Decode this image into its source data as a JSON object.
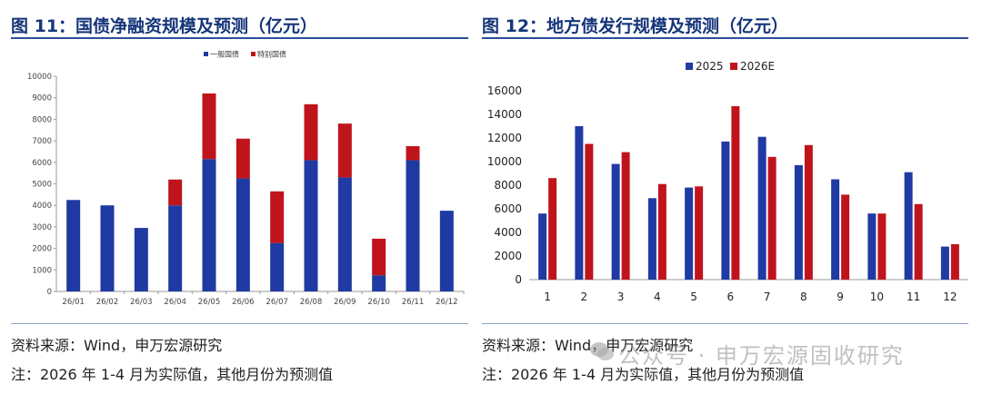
{
  "colors": {
    "blue": "#1f3aa3",
    "red": "#c0141c",
    "title": "#15357a"
  },
  "left": {
    "title": "图 11：国债净融资规模及预测（亿元）",
    "source": "资料来源：Wind，申万宏源研究",
    "note": "注：2026 年 1-4 月为实际值，其他月份为预测值"
  },
  "right": {
    "title": "图 12：地方债发行规模及预测（亿元）",
    "source": "资料来源：Wind，申万宏源研究",
    "note": "注：2026 年 1-4 月为实际值，其他月份为预测值"
  },
  "watermark": "公众号 · 申万宏源固收研究",
  "chart_data": [
    {
      "id": "left",
      "type": "bar",
      "stacked": true,
      "title": "国债净融资规模及预测（亿元）",
      "categories": [
        "26/01",
        "26/02",
        "26/03",
        "26/04",
        "26/05",
        "26/06",
        "26/07",
        "26/08",
        "26/09",
        "26/10",
        "26/11",
        "26/12"
      ],
      "series": [
        {
          "name": "一般国债",
          "color": "#1f3aa3",
          "values": [
            4250,
            4000,
            2950,
            4000,
            6150,
            5250,
            2250,
            6100,
            5300,
            750,
            6100,
            3750
          ]
        },
        {
          "name": "特别国债",
          "color": "#c0141c",
          "values": [
            0,
            0,
            0,
            1200,
            3050,
            1850,
            2400,
            2600,
            2500,
            1700,
            650,
            0
          ]
        }
      ],
      "ylim": [
        0,
        10000
      ],
      "yticks": [
        0,
        1000,
        2000,
        3000,
        4000,
        5000,
        6000,
        7000,
        8000,
        9000,
        10000
      ],
      "legend": "top-right",
      "grid": false
    },
    {
      "id": "right",
      "type": "bar",
      "stacked": false,
      "title": "地方债发行规模及预测（亿元）",
      "categories": [
        "1",
        "2",
        "3",
        "4",
        "5",
        "6",
        "7",
        "8",
        "9",
        "10",
        "11",
        "12"
      ],
      "series": [
        {
          "name": "2025",
          "color": "#1f3aa3",
          "values": [
            5600,
            13000,
            9800,
            6900,
            7800,
            11700,
            12100,
            9700,
            8500,
            5600,
            9100,
            2800
          ]
        },
        {
          "name": "2026E",
          "color": "#c0141c",
          "values": [
            8600,
            11500,
            10800,
            8100,
            7900,
            14700,
            10400,
            11400,
            7200,
            5600,
            6400,
            3000
          ]
        }
      ],
      "ylim": [
        0,
        16000
      ],
      "yticks": [
        0,
        2000,
        4000,
        6000,
        8000,
        10000,
        12000,
        14000,
        16000
      ],
      "legend": "top-left",
      "grid": false
    }
  ]
}
